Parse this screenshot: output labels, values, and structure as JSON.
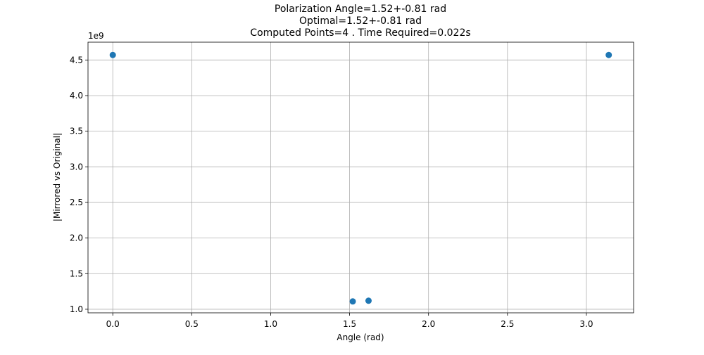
{
  "chart_data": {
    "type": "scatter",
    "title_lines": [
      "Polarization Angle=1.52+-0.81 rad",
      "Optimal=1.52+-0.81 rad",
      "Computed Points=4 . Time Required=0.022s"
    ],
    "xlabel": "Angle (rad)",
    "ylabel": "|Mirrored vs Original|",
    "y_offset_text": "1e9",
    "xlim": [
      -0.157,
      3.299
    ],
    "ylim": [
      0.95,
      4.75
    ],
    "x_ticks": [
      0.0,
      0.5,
      1.0,
      1.5,
      2.0,
      2.5,
      3.0
    ],
    "x_tick_labels": [
      "0.0",
      "0.5",
      "1.0",
      "1.5",
      "2.0",
      "2.5",
      "3.0"
    ],
    "y_ticks": [
      1.0,
      1.5,
      2.0,
      2.5,
      3.0,
      3.5,
      4.0,
      4.5
    ],
    "y_tick_labels": [
      "1.0",
      "1.5",
      "2.0",
      "2.5",
      "3.0",
      "3.5",
      "4.0",
      "4.5"
    ],
    "grid": true,
    "marker_color": "#1f77b4",
    "points": [
      {
        "x": 0.0,
        "y": 4.57
      },
      {
        "x": 1.52,
        "y": 1.11
      },
      {
        "x": 1.62,
        "y": 1.12
      },
      {
        "x": 3.1416,
        "y": 4.57
      }
    ]
  }
}
